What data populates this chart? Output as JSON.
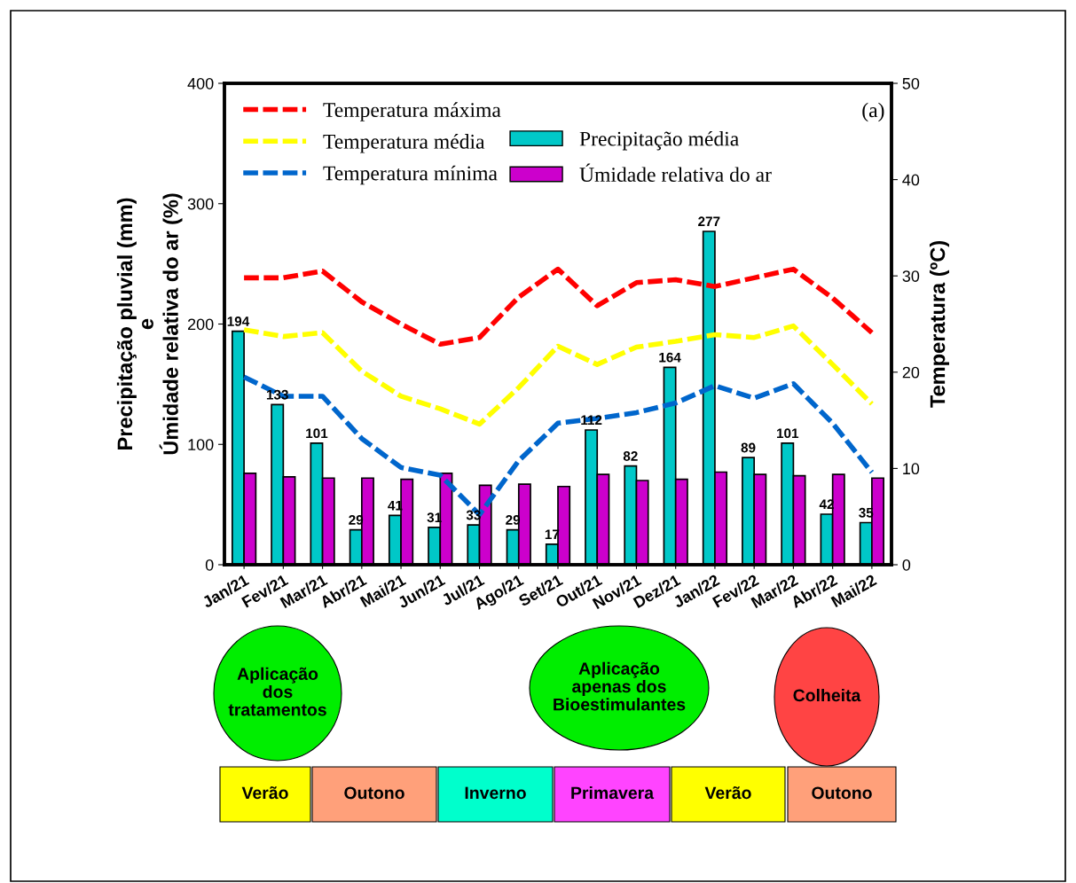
{
  "chart_data": {
    "type": "bar",
    "categories": [
      "Jan/21",
      "Fev/21",
      "Mar/21",
      "Abr/21",
      "Mai/21",
      "Jun/21",
      "Jul/21",
      "Ago/21",
      "Set/21",
      "Out/21",
      "Nov/21",
      "Dez/21",
      "Jan/22",
      "Fev/22",
      "Mar/22",
      "Abr/22",
      "Mai/22"
    ],
    "ylabel": "Precipitação pluvial (mm)\ne\nÚmidade relativa do ar (%)",
    "y2label": "Temperatura (ºC)",
    "ylim": [
      0,
      400
    ],
    "yticks": [
      0,
      100,
      200,
      300,
      400
    ],
    "y2lim": [
      0,
      50
    ],
    "y2ticks": [
      0,
      10,
      20,
      30,
      40,
      50
    ],
    "legend": "top left",
    "grid": false,
    "series": [
      {
        "name": "Precipitação média",
        "color": "#00c8c8",
        "values": [
          194,
          133,
          101,
          29,
          41,
          31,
          33,
          29,
          17,
          112,
          82,
          164,
          277,
          89,
          101,
          42,
          35
        ],
        "value_labels": [
          "194",
          "133",
          "101",
          "29",
          "41",
          "31",
          "33",
          "29",
          "17",
          "112",
          "82",
          "164",
          "277",
          "89",
          "101",
          "42",
          "35"
        ]
      },
      {
        "name": "Úmidade relativa do ar",
        "color": "#cc00cc",
        "values": [
          76,
          73,
          72,
          72,
          71,
          76,
          66,
          67,
          65,
          75,
          70,
          71,
          77,
          75,
          74,
          75,
          72
        ]
      },
      {
        "name": "Temperatura máxima",
        "type": "line",
        "axis": "y2",
        "color": "#ff0000",
        "line_style": "dashed",
        "values": [
          29.8,
          29.8,
          30.5,
          27.3,
          25.0,
          22.9,
          23.6,
          27.8,
          30.7,
          26.9,
          29.3,
          29.6,
          28.9,
          29.8,
          30.7,
          27.7,
          24.1
        ]
      },
      {
        "name": "Temperatura média",
        "type": "line",
        "axis": "y2",
        "color": "#ffff00",
        "line_style": "dashed",
        "values": [
          24.4,
          23.7,
          24.1,
          20.1,
          17.5,
          16.2,
          14.6,
          18.4,
          22.7,
          20.8,
          22.6,
          23.2,
          23.9,
          23.6,
          24.8,
          20.8,
          16.7
        ]
      },
      {
        "name": "Temperatura mínima",
        "type": "line",
        "axis": "y2",
        "color": "#0066cc",
        "line_style": "dashed",
        "values": [
          19.5,
          17.5,
          17.5,
          13.1,
          10.1,
          9.3,
          5.2,
          10.8,
          14.7,
          15.2,
          15.8,
          16.8,
          18.6,
          17.3,
          18.8,
          14.7,
          9.6
        ]
      }
    ],
    "annotations": [
      "(a)",
      "Aplicação\ndos\ntratamentos",
      "Aplicação\napenas dos\nBioestimulantes",
      "Colheita",
      "Verão",
      "Outono",
      "Inverno",
      "Primavera",
      "Verão",
      "Outono"
    ]
  }
}
